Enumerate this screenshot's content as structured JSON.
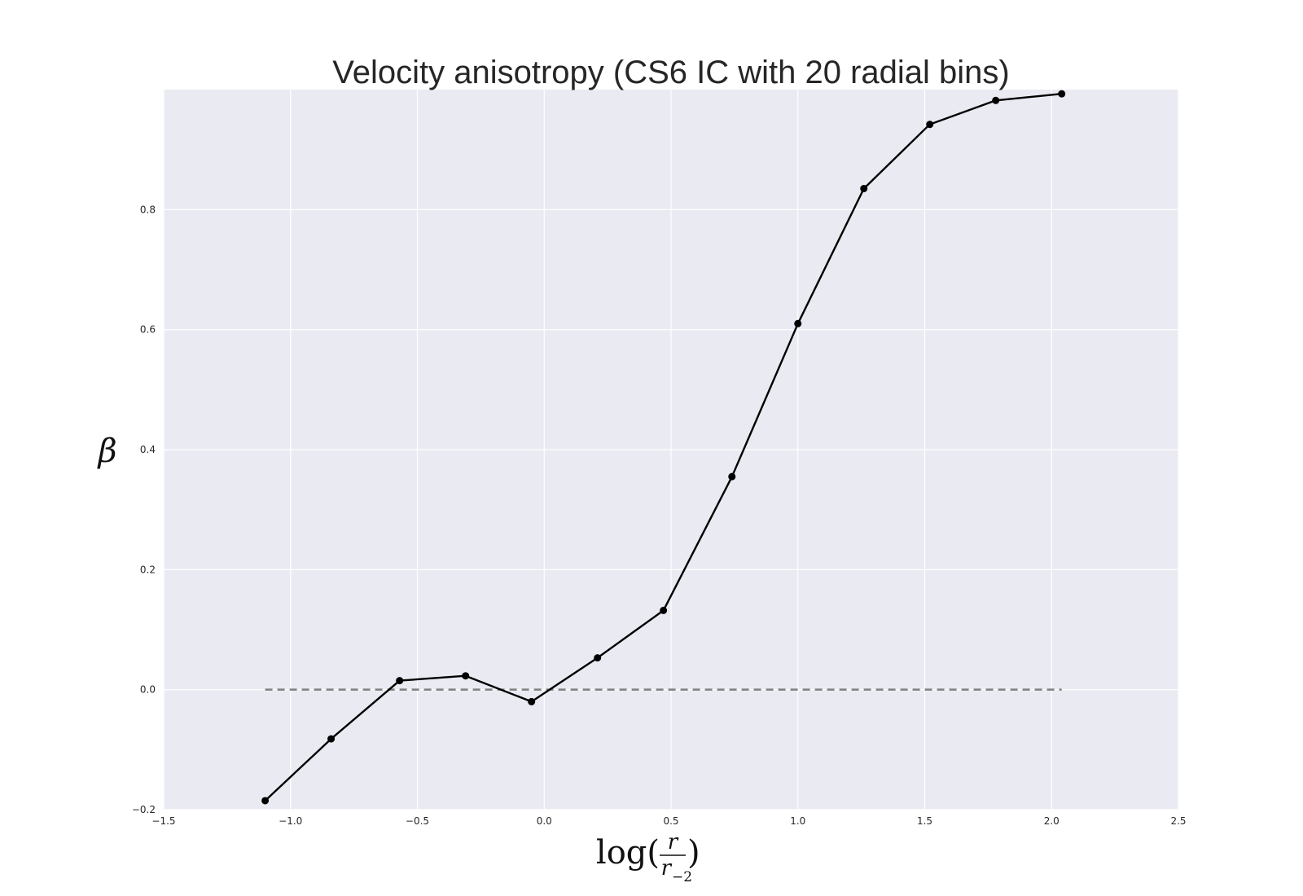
{
  "chart_data": {
    "type": "line",
    "title": "Velocity anisotropy (CS6 IC with 20 radial bins)",
    "xlabel": {
      "prefix": "log(",
      "numerator": "r",
      "denominator_base": "r",
      "denominator_sub": "−2",
      "suffix": ")"
    },
    "ylabel": "β",
    "xlim": [
      -1.5,
      2.5
    ],
    "ylim": [
      -0.2,
      1.0
    ],
    "xticks": [
      -1.5,
      -1.0,
      -0.5,
      0.0,
      0.5,
      1.0,
      1.5,
      2.0,
      2.5
    ],
    "xtick_labels": [
      "−1.5",
      "−1.0",
      "−0.5",
      "0.0",
      "0.5",
      "1.0",
      "1.5",
      "2.0",
      "2.5"
    ],
    "yticks": [
      -0.2,
      0.0,
      0.2,
      0.4,
      0.6,
      0.8
    ],
    "ytick_labels": [
      "−0.2",
      "0.0",
      "0.2",
      "0.4",
      "0.6",
      "0.8"
    ],
    "grid": true,
    "background_color": "#eaeaf2",
    "grid_color": "#ffffff",
    "series": [
      {
        "color": "#000000",
        "marker": "circle",
        "x": [
          -1.1,
          -0.84,
          -0.57,
          -0.31,
          -0.05,
          0.21,
          0.47,
          0.74,
          1.0,
          1.26,
          1.52,
          1.78,
          2.04
        ],
        "y": [
          -0.185,
          -0.082,
          0.015,
          0.023,
          -0.02,
          0.053,
          0.132,
          0.355,
          0.61,
          0.835,
          0.942,
          0.982,
          0.993
        ]
      }
    ],
    "reference_line": {
      "y": 0.0,
      "x_from": -1.1,
      "x_to": 2.04,
      "style": "dashed",
      "color": "#808080"
    }
  }
}
